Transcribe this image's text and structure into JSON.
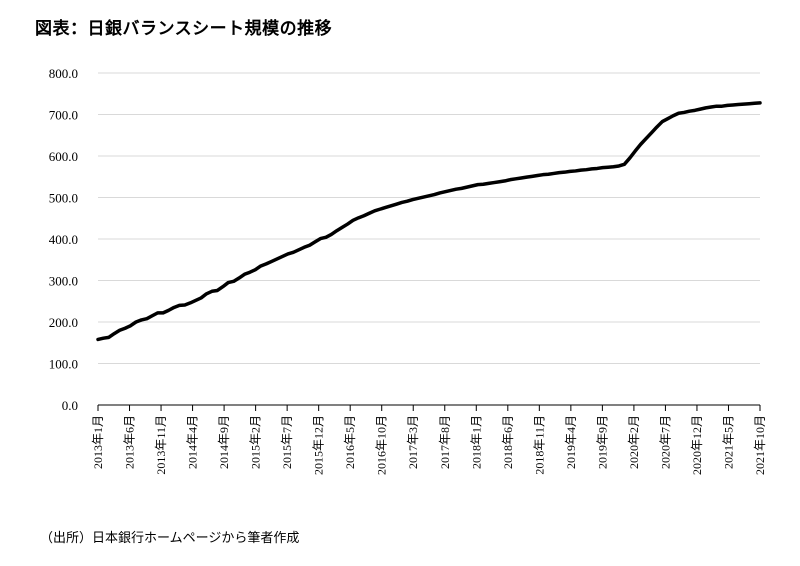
{
  "title": "図表：日銀バランスシート規模の推移",
  "source": "（出所）日本銀行ホームページから筆者作成",
  "colors": {
    "line": "#000000",
    "grid": "#d9d9d9",
    "axis": "#000000"
  },
  "chart_data": {
    "type": "line",
    "title": "図表：日銀バランスシート規模の推移",
    "xlabel": "",
    "ylabel": "",
    "ylim": [
      0,
      800
    ],
    "yticks": [
      "0.0",
      "100.0",
      "200.0",
      "300.0",
      "400.0",
      "500.0",
      "600.0",
      "700.0",
      "800.0"
    ],
    "xticks": [
      "2013年1月",
      "2013年6月",
      "2013年11月",
      "2014年4月",
      "2014年9月",
      "2015年2月",
      "2015年7月",
      "2015年12月",
      "2016年5月",
      "2016年10月",
      "2017年3月",
      "2017年8月",
      "2018年1月",
      "2018年6月",
      "2018年11月",
      "2019年4月",
      "2019年9月",
      "2020年2月",
      "2020年7月",
      "2020年12月",
      "2021年5月",
      "2021年10月"
    ],
    "grid": true,
    "legend": "none",
    "x_start": "2013年1月",
    "x_end": "2021年10月",
    "series": [
      {
        "values": [
          158,
          161,
          163,
          172,
          180,
          185,
          191,
          200,
          205,
          208,
          215,
          222,
          222,
          228,
          235,
          240,
          241,
          246,
          252,
          258,
          268,
          274,
          276,
          285,
          295,
          298,
          306,
          315,
          320,
          326,
          335,
          340,
          346,
          352,
          358,
          364,
          368,
          374,
          380,
          385,
          393,
          401,
          404,
          411,
          420,
          428,
          436,
          445,
          451,
          456,
          462,
          468,
          472,
          476,
          480,
          484,
          488,
          491,
          495,
          498,
          501,
          504,
          507,
          511,
          514,
          517,
          520,
          522,
          525,
          528,
          531,
          532,
          534,
          536,
          538,
          540,
          543,
          545,
          547,
          549,
          551,
          553,
          555,
          556,
          558,
          560,
          561,
          563,
          564,
          566,
          567,
          569,
          570,
          572,
          573,
          574,
          576,
          580,
          595,
          612,
          628,
          642,
          656,
          670,
          683,
          690,
          697,
          703,
          705,
          708,
          710,
          713,
          716,
          718,
          720,
          720,
          722,
          723,
          724,
          725,
          726,
          727,
          728
        ]
      }
    ]
  }
}
